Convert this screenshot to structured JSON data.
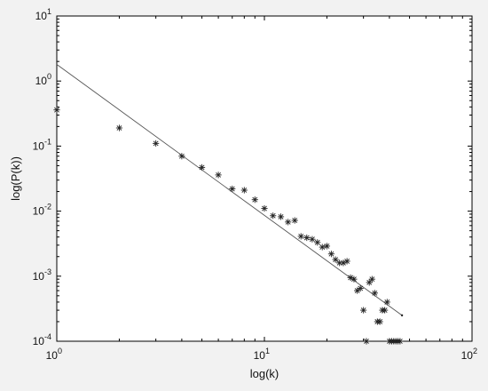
{
  "chart_data": {
    "type": "scatter",
    "title": "",
    "xlabel": "log(k)",
    "ylabel": "log(P(k))",
    "xscale": "log",
    "yscale": "log",
    "xlim": [
      1,
      100
    ],
    "ylim": [
      0.0001,
      10
    ],
    "x_ticks": [
      {
        "base": "10",
        "exp": "0"
      },
      {
        "base": "10",
        "exp": "1"
      },
      {
        "base": "10",
        "exp": "2"
      }
    ],
    "y_ticks": [
      {
        "base": "10",
        "exp": "-4"
      },
      {
        "base": "10",
        "exp": "-3"
      },
      {
        "base": "10",
        "exp": "-2"
      },
      {
        "base": "10",
        "exp": "-1"
      },
      {
        "base": "10",
        "exp": "0"
      },
      {
        "base": "10",
        "exp": "1"
      }
    ],
    "grid": false,
    "marker": "asterisk",
    "series": [
      {
        "points": [
          [
            1,
            0.36
          ],
          [
            2,
            0.19
          ],
          [
            3,
            0.11
          ],
          [
            4,
            0.07
          ],
          [
            5,
            0.047
          ],
          [
            6,
            0.036
          ],
          [
            7,
            0.022
          ],
          [
            8,
            0.021
          ],
          [
            9,
            0.015
          ],
          [
            10,
            0.011
          ],
          [
            11,
            0.0085
          ],
          [
            12,
            0.0082
          ],
          [
            13,
            0.0068
          ],
          [
            14,
            0.0072
          ],
          [
            15,
            0.0041
          ],
          [
            16,
            0.0039
          ],
          [
            17,
            0.0037
          ],
          [
            18,
            0.0033
          ],
          [
            19,
            0.0028
          ],
          [
            20,
            0.0029
          ],
          [
            21,
            0.0022
          ],
          [
            22,
            0.0018
          ],
          [
            23,
            0.0016
          ],
          [
            24,
            0.0016
          ],
          [
            25,
            0.0017
          ],
          [
            26,
            0.00095
          ],
          [
            27,
            0.0009
          ],
          [
            28,
            0.0006
          ],
          [
            29,
            0.00065
          ],
          [
            30,
            0.0003
          ],
          [
            31,
            0.0001
          ],
          [
            32,
            0.0008
          ],
          [
            33,
            0.0009
          ],
          [
            34,
            0.00055
          ],
          [
            35,
            0.0002
          ],
          [
            36,
            0.0002
          ],
          [
            37,
            0.0003
          ],
          [
            38,
            0.0003
          ],
          [
            39,
            0.0004
          ],
          [
            40,
            0.0001
          ],
          [
            41,
            0.0001
          ],
          [
            42,
            0.0001
          ],
          [
            43,
            0.0001
          ],
          [
            44,
            0.0001
          ],
          [
            45,
            0.0001
          ]
        ]
      }
    ],
    "fit_line": {
      "x": [
        1,
        46
      ],
      "y": [
        1.8,
        0.00025
      ]
    }
  },
  "colors": {
    "background": "#f2f2f2",
    "plot_area": "#ffffff",
    "axis": "#000000",
    "marker": "#222222",
    "fit_line": "#555555"
  }
}
